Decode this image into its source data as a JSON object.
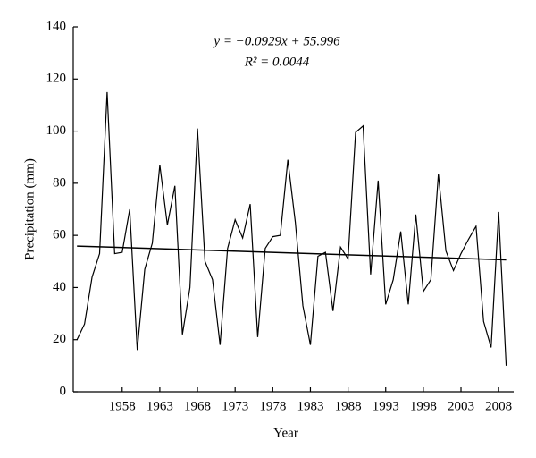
{
  "chart_data": {
    "type": "line",
    "xlabel": "Year",
    "ylabel": "Precipitation (mm)",
    "annotations": [
      "y = −0.0929x + 55.996",
      "R² = 0.0044"
    ],
    "x": [
      1952,
      1953,
      1954,
      1955,
      1956,
      1957,
      1958,
      1959,
      1960,
      1961,
      1962,
      1963,
      1964,
      1965,
      1966,
      1967,
      1968,
      1969,
      1970,
      1971,
      1972,
      1973,
      1974,
      1975,
      1976,
      1977,
      1978,
      1979,
      1980,
      1981,
      1982,
      1983,
      1984,
      1985,
      1986,
      1987,
      1988,
      1989,
      1990,
      1991,
      1992,
      1993,
      1994,
      1995,
      1996,
      1997,
      1998,
      1999,
      2000,
      2001,
      2002,
      2003,
      2004,
      2005,
      2006,
      2007,
      2008,
      2009
    ],
    "series": [
      {
        "name": "Precipitation",
        "color": "#000000",
        "values": [
          20,
          26,
          44,
          53,
          115,
          53,
          53.5,
          70,
          16,
          47,
          57,
          87,
          64,
          79,
          22,
          40,
          101,
          50,
          43,
          18,
          55,
          66,
          59,
          72,
          21,
          55,
          59.5,
          60,
          89,
          65,
          33,
          18,
          52,
          53.5,
          31,
          55.5,
          51,
          99.5,
          102,
          45,
          81,
          33.5,
          43,
          61.5,
          33.5,
          68,
          38.5,
          43,
          83.5,
          54,
          46.5,
          53,
          58.5,
          63.5,
          27,
          17,
          69,
          10
        ]
      },
      {
        "name": "Trend",
        "color": "#000000",
        "x": [
          1952,
          2009
        ],
        "values": [
          55.9,
          50.6
        ]
      }
    ],
    "xlim": [
      1951.5,
      2010
    ],
    "xticks": [
      1958,
      1963,
      1968,
      1973,
      1978,
      1983,
      1988,
      1993,
      1998,
      2003,
      2008
    ],
    "ylim": [
      0,
      140
    ],
    "yticks": [
      0,
      20,
      40,
      60,
      80,
      100,
      120,
      140
    ],
    "grid": false
  }
}
